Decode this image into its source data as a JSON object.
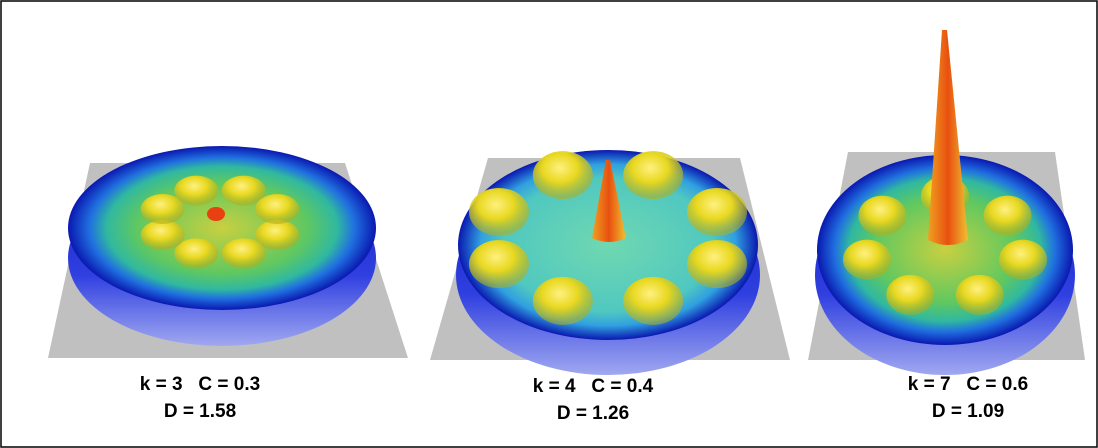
{
  "panels": [
    {
      "caption_line1": "k = 3   C = 0.3",
      "caption_line2": "D = 1.58"
    },
    {
      "caption_line1": "k = 4   C = 0.4",
      "caption_line2": "D = 1.26"
    },
    {
      "caption_line1": "k = 7   C = 0.6",
      "caption_line2": "D = 1.09"
    }
  ]
}
